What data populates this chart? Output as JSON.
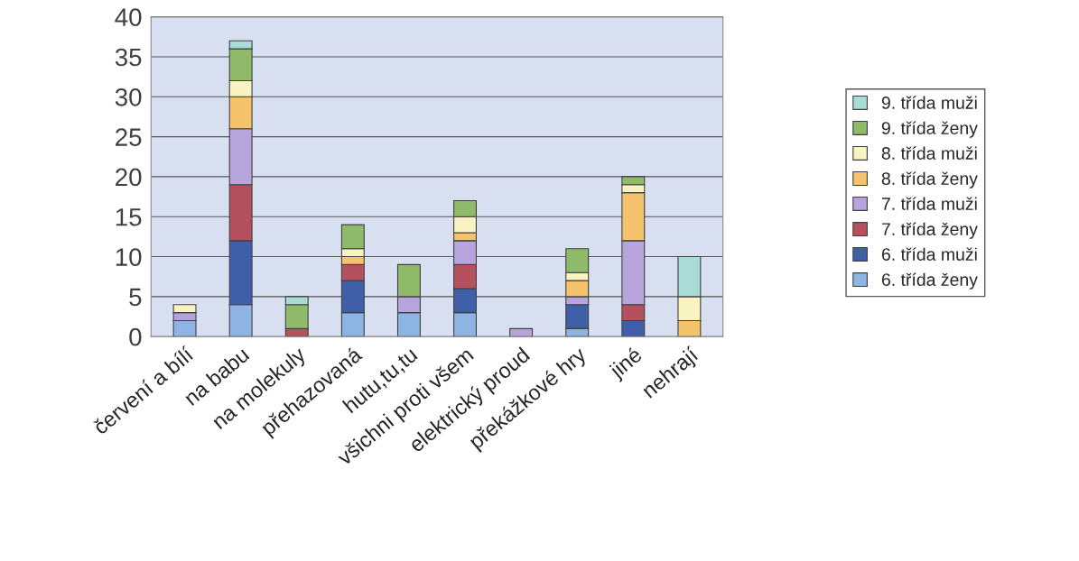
{
  "chart_data": {
    "type": "bar",
    "stacked": true,
    "categories": [
      "červení a bílí",
      "na babu",
      "na molekuly",
      "přehazovaná",
      "hutu,tu,tu",
      "všichni proti všem",
      "elektrický proud",
      "překážkové hry",
      "jiné",
      "nehrají"
    ],
    "series": [
      {
        "name": "6. třída ženy",
        "color": "#8eb4e3",
        "values": [
          2,
          4,
          0,
          3,
          3,
          3,
          0,
          1,
          0,
          0
        ]
      },
      {
        "name": "6. třída muži",
        "color": "#3f5fa8",
        "values": [
          0,
          8,
          0,
          4,
          0,
          3,
          0,
          3,
          2,
          0
        ]
      },
      {
        "name": "7. třída ženy",
        "color": "#b5505e",
        "values": [
          0,
          7,
          1,
          2,
          0,
          3,
          0,
          0,
          2,
          0
        ]
      },
      {
        "name": "7. třída muži",
        "color": "#b8a4dc",
        "values": [
          1,
          7,
          0,
          0,
          2,
          3,
          1,
          1,
          8,
          0
        ]
      },
      {
        "name": "8. třída ženy",
        "color": "#f6c36d",
        "values": [
          0,
          4,
          0,
          1,
          0,
          1,
          0,
          2,
          6,
          2
        ]
      },
      {
        "name": "8. třída muži",
        "color": "#f8f3c0",
        "values": [
          1,
          2,
          0,
          1,
          0,
          2,
          0,
          1,
          1,
          3
        ]
      },
      {
        "name": "9. třída ženy",
        "color": "#8fba6a",
        "values": [
          0,
          4,
          3,
          3,
          4,
          2,
          0,
          3,
          1,
          0
        ]
      },
      {
        "name": "9. třída muži",
        "color": "#a8dcd4",
        "values": [
          0,
          1,
          1,
          0,
          0,
          0,
          0,
          0,
          0,
          5
        ]
      }
    ],
    "ylim": [
      0,
      40
    ],
    "yticks": [
      0,
      5,
      10,
      15,
      20,
      25,
      30,
      35,
      40
    ],
    "grid": "y",
    "legend": "right"
  }
}
